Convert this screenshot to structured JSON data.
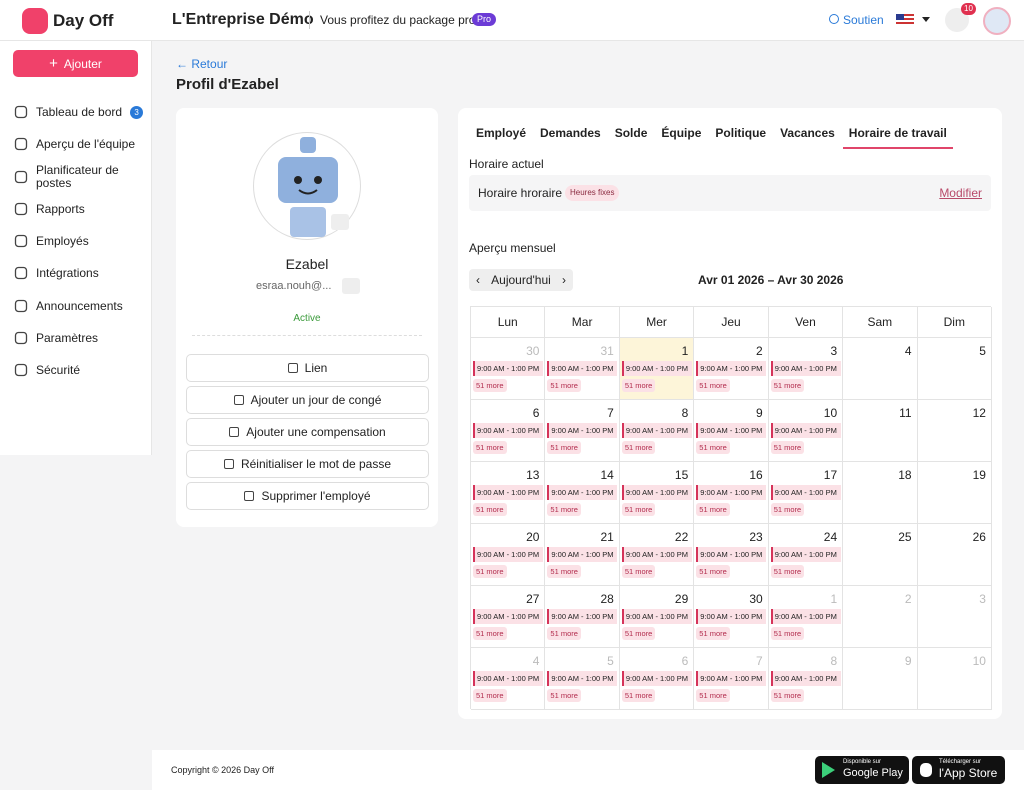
{
  "header": {
    "brand": "Day Off",
    "company": "L'Entreprise Démo",
    "package_text": "Vous profitez du package pro",
    "badge": "Pro",
    "support": "Soutien",
    "notifications": "10"
  },
  "sidebar": {
    "add_button": "Ajouter",
    "items": [
      {
        "label": "Tableau de bord",
        "badge": "3"
      },
      {
        "label": "Aperçu de l'équipe"
      },
      {
        "label": "Planificateur de postes"
      },
      {
        "label": "Rapports"
      },
      {
        "label": "Employés"
      },
      {
        "label": "Intégrations"
      },
      {
        "label": "Announcements"
      },
      {
        "label": "Paramètres"
      },
      {
        "label": "Sécurité"
      }
    ]
  },
  "page": {
    "back": "Retour",
    "title": "Profil d'Ezabel"
  },
  "profile": {
    "name": "Ezabel",
    "email": "esraa.nouh@...",
    "status": "Active",
    "actions": [
      "Lien",
      "Ajouter un jour de congé",
      "Ajouter une compensation",
      "Réinitialiser le mot de passe",
      "Supprimer l'employé"
    ]
  },
  "tabs": [
    "Employé",
    "Demandes",
    "Solde",
    "Équipe",
    "Politique",
    "Vacances",
    "Horaire de travail"
  ],
  "schedule": {
    "label": "Horaire actuel",
    "name": "Horaire hroraire",
    "tag": "Heures fixes",
    "edit": "Modifier"
  },
  "calendar": {
    "label": "Aperçu mensuel",
    "today_button": "Aujourd'hui",
    "range": "Avr 01 2026 – Avr 30 2026",
    "weekdays": [
      "Lun",
      "Mar",
      "Mer",
      "Jeu",
      "Ven",
      "Sam",
      "Dim"
    ],
    "weeks": [
      [
        {
          "day": 30,
          "shift": "9:00 AM - 1:00 PM",
          "more": "51 more"
        },
        {
          "day": 31,
          "shift": "9:00 AM - 1:00 PM",
          "more": "51 more"
        },
        {
          "day": 1,
          "shift": "9:00 AM - 1:00 PM",
          "more": "51 more"
        },
        {
          "day": 2,
          "shift": "9:00 AM - 1:00 PM",
          "more": "51 more"
        },
        {
          "day": 3,
          "shift": "9:00 AM - 1:00 PM",
          "more": "51 more"
        },
        {
          "day": 4
        },
        {
          "day": 5
        }
      ],
      [
        {
          "day": 6,
          "shift": "9:00 AM - 1:00 PM",
          "more": "51 more"
        },
        {
          "day": 7,
          "shift": "9:00 AM - 1:00 PM",
          "more": "51 more"
        },
        {
          "day": 8,
          "shift": "9:00 AM - 1:00 PM",
          "more": "51 more"
        },
        {
          "day": 9,
          "shift": "9:00 AM - 1:00 PM",
          "more": "51 more"
        },
        {
          "day": 10,
          "shift": "9:00 AM - 1:00 PM",
          "more": "51 more"
        },
        {
          "day": 11
        },
        {
          "day": 12
        }
      ],
      [
        {
          "day": 13,
          "shift": "9:00 AM - 1:00 PM",
          "more": "51 more"
        },
        {
          "day": 14,
          "shift": "9:00 AM - 1:00 PM",
          "more": "51 more"
        },
        {
          "day": 15,
          "shift": "9:00 AM - 1:00 PM",
          "more": "51 more"
        },
        {
          "day": 16,
          "shift": "9:00 AM - 1:00 PM",
          "more": "51 more"
        },
        {
          "day": 17,
          "shift": "9:00 AM - 1:00 PM",
          "more": "51 more"
        },
        {
          "day": 18
        },
        {
          "day": 19
        }
      ],
      [
        {
          "day": 20,
          "shift": "9:00 AM - 1:00 PM",
          "more": "51 more"
        },
        {
          "day": 21,
          "shift": "9:00 AM - 1:00 PM",
          "more": "51 more"
        },
        {
          "day": 22,
          "shift": "9:00 AM - 1:00 PM",
          "more": "51 more"
        },
        {
          "day": 23,
          "shift": "9:00 AM - 1:00 PM",
          "more": "51 more"
        },
        {
          "day": 24,
          "shift": "9:00 AM - 1:00 PM",
          "more": "51 more"
        },
        {
          "day": 25
        },
        {
          "day": 26
        }
      ],
      [
        {
          "day": 27,
          "shift": "9:00 AM - 1:00 PM",
          "more": "51 more"
        },
        {
          "day": 28,
          "shift": "9:00 AM - 1:00 PM",
          "more": "51 more"
        },
        {
          "day": 29,
          "shift": "9:00 AM - 1:00 PM",
          "more": "51 more"
        },
        {
          "day": 30,
          "shift": "9:00 AM - 1:00 PM",
          "more": "51 more"
        },
        {
          "day": 1,
          "shift": "9:00 AM - 1:00 PM",
          "more": "51 more"
        },
        {
          "day": 2
        },
        {
          "day": 3
        }
      ],
      [
        {
          "day": 4,
          "shift": "9:00 AM - 1:00 PM",
          "more": "51 more"
        },
        {
          "day": 5,
          "shift": "9:00 AM - 1:00 PM",
          "more": "51 more"
        },
        {
          "day": 6,
          "shift": "9:00 AM - 1:00 PM",
          "more": "51 more"
        },
        {
          "day": 7,
          "shift": "9:00 AM - 1:00 PM",
          "more": "51 more"
        },
        {
          "day": 8,
          "shift": "9:00 AM - 1:00 PM",
          "more": "51 more"
        },
        {
          "day": 9
        },
        {
          "day": 10
        }
      ]
    ]
  },
  "footer": {
    "copyright": "Copyright © 2026 Day Off",
    "google_small": "Disponible sur",
    "google_big": "Google Play",
    "apple_small": "Télécharger sur",
    "apple_big": "l'App Store"
  }
}
